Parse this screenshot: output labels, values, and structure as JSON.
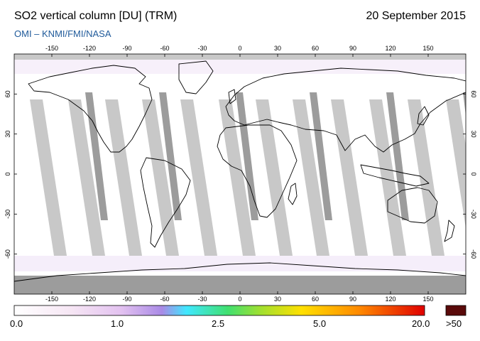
{
  "header": {
    "title": "SO2 vertical column [DU] (TRM)",
    "date": "20 September 2015",
    "credit": "OMI  –  KNMI/FMI/NASA"
  },
  "map": {
    "projection": "equirectangular",
    "lon_range": [
      -180,
      180
    ],
    "lat_range": [
      -90,
      90
    ],
    "lon_ticks": [
      -150,
      -120,
      -90,
      -60,
      -30,
      0,
      30,
      60,
      90,
      120,
      150
    ],
    "lat_ticks": [
      60,
      30,
      0,
      -30,
      -60
    ],
    "colors": {
      "no_data": "#c8c8c8",
      "data_gap": "#9c9c9c",
      "background_values": "#ffffff",
      "coastline": "#000000"
    }
  },
  "colorbar": {
    "labels": [
      "0.0",
      "1.0",
      "2.5",
      "5.0",
      "20.0"
    ],
    "overflow_label": ">50",
    "overflow_color": "#5a0a0a",
    "stops": [
      "#ffffff",
      "#f3d9f0",
      "#b48ce8",
      "#40e8ff",
      "#40e040",
      "#ffe000",
      "#ff7000",
      "#e00000"
    ]
  }
}
